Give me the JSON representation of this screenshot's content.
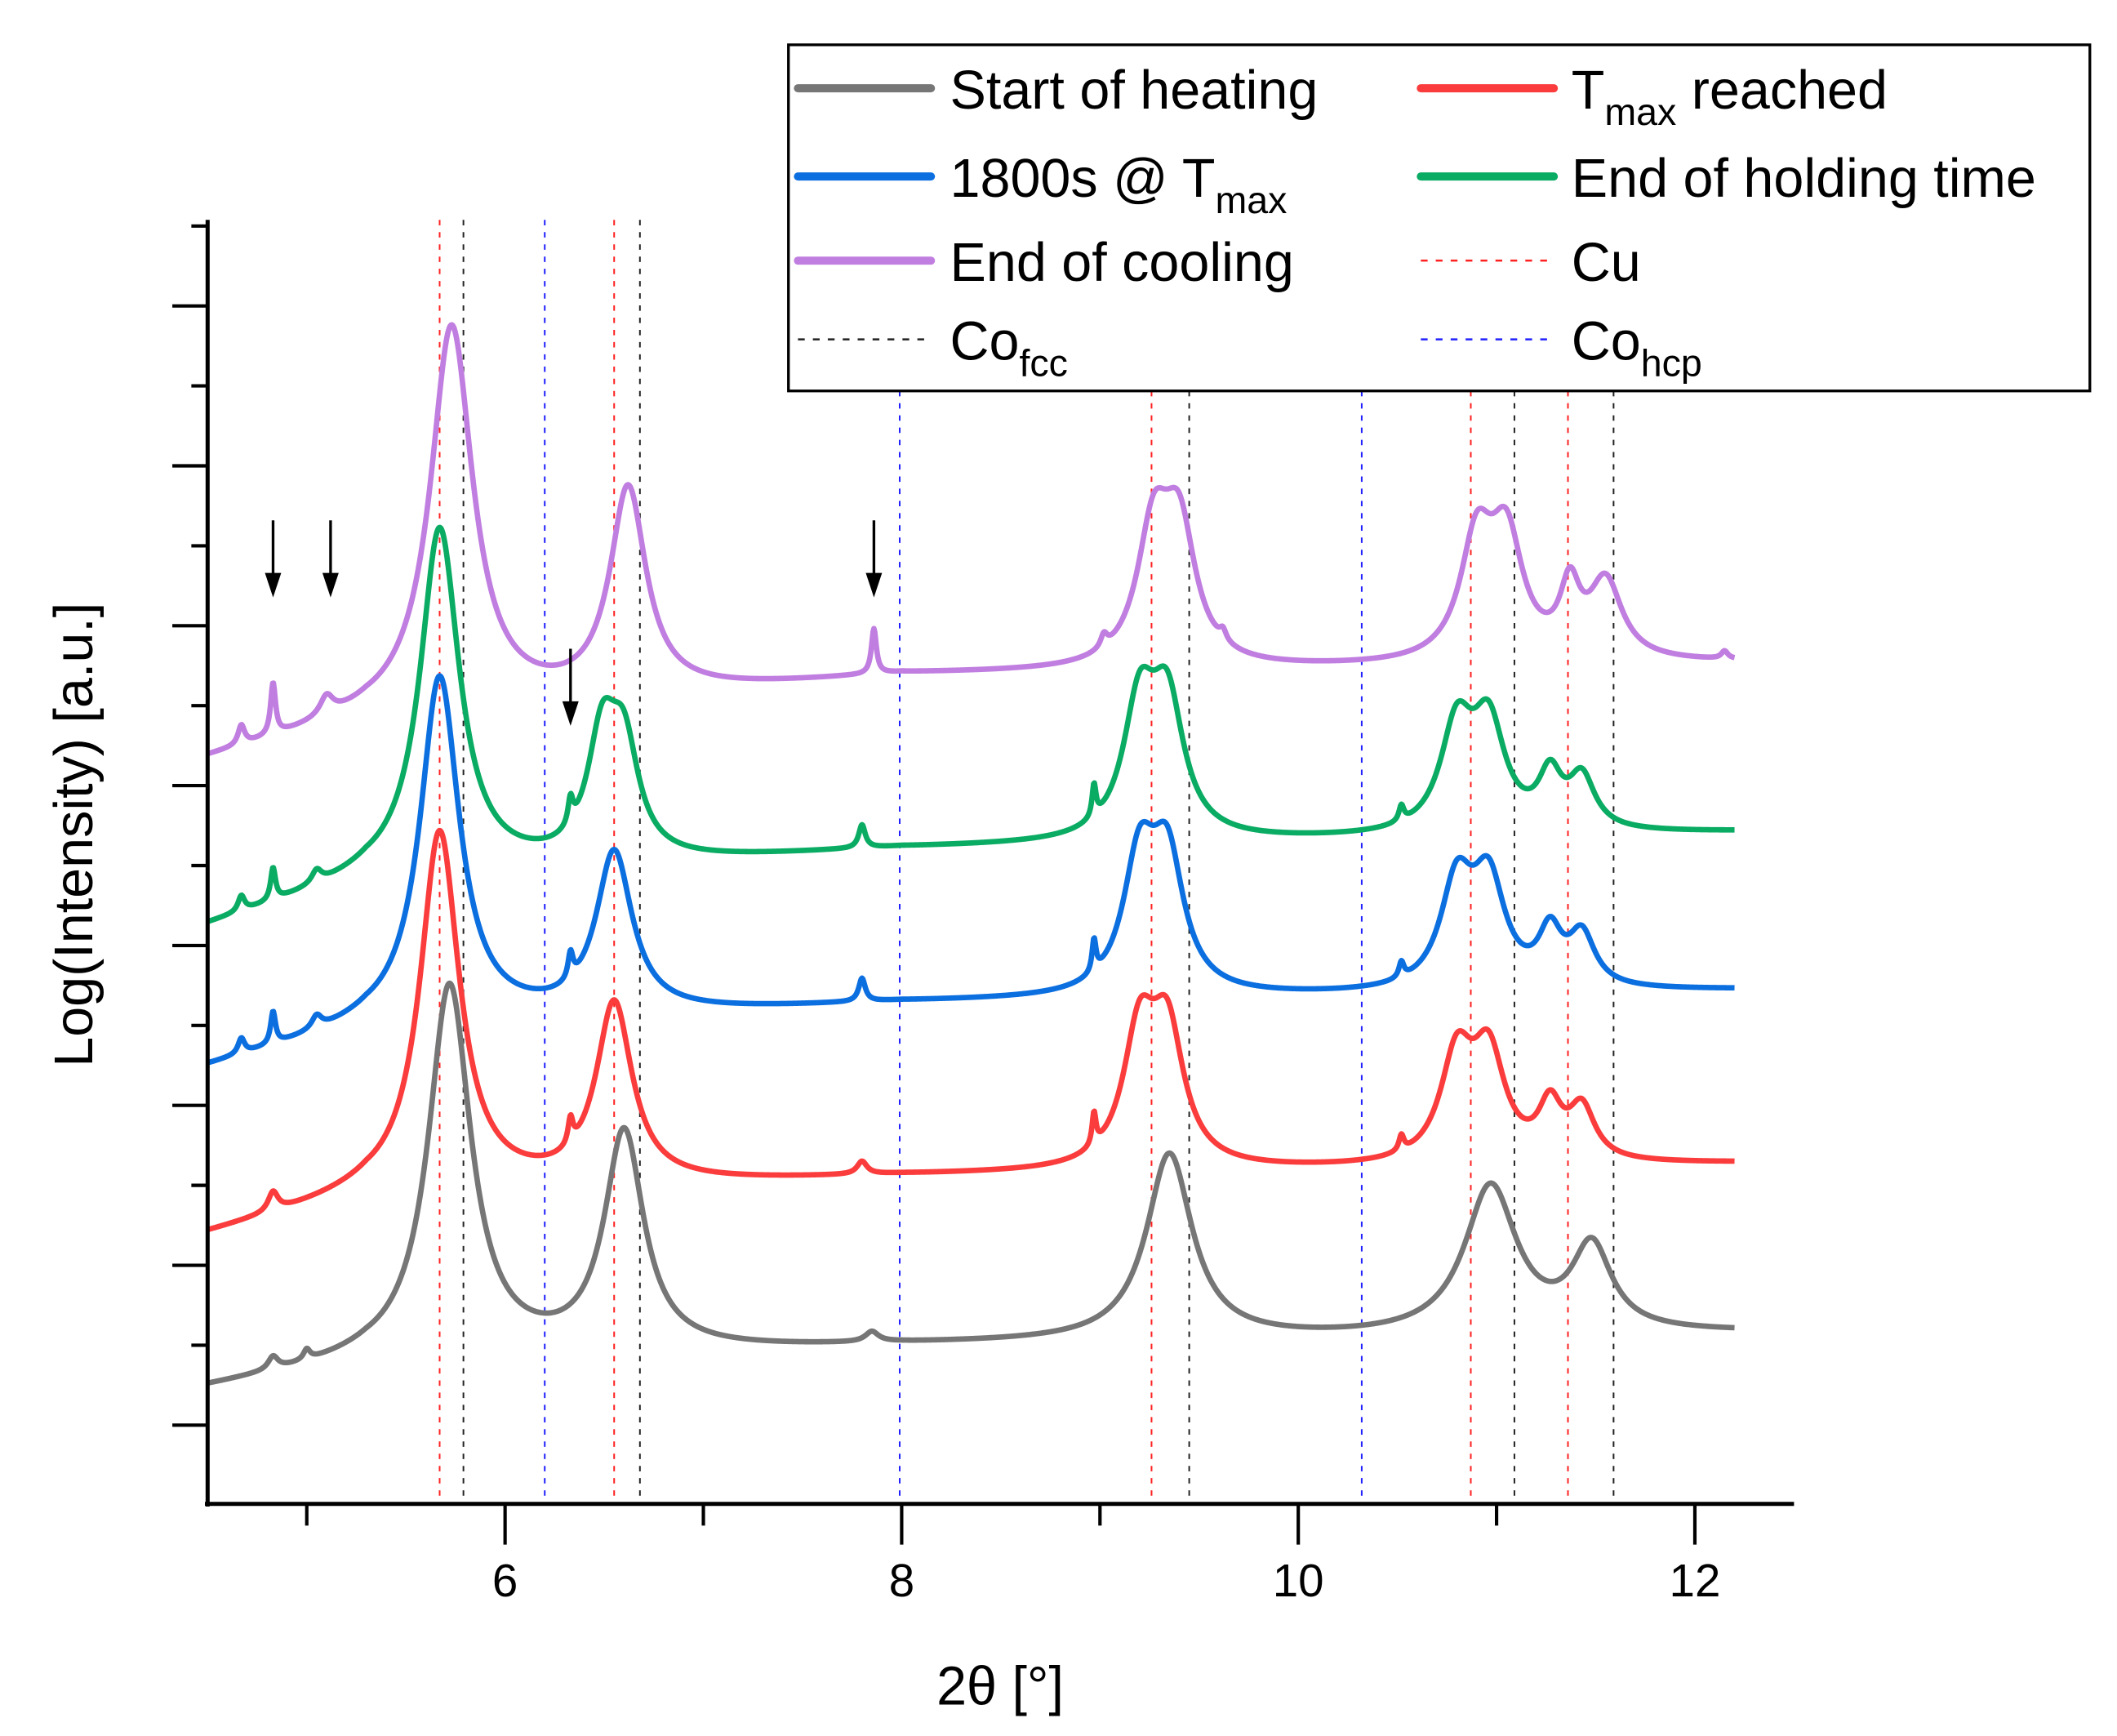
{
  "chart_data": {
    "type": "line",
    "title": "",
    "xlabel": "2θ [°]",
    "ylabel": "Log(Intensity) [a.u.]",
    "xlim": [
      4.5,
      12.5
    ],
    "ylim": [
      0,
      100
    ],
    "x_ticks": [
      "6",
      "8",
      "10",
      "12"
    ],
    "x_tick_values": [
      6,
      8,
      10,
      12
    ],
    "x_minor_ticks": [
      5,
      7,
      9,
      11
    ],
    "y_tick_labels_shown": false,
    "grid": false,
    "legend_placement": "top-right",
    "x_range_data": [
      4.5,
      12.2
    ],
    "series": [
      {
        "name": "Start of heating",
        "color": "#767676",
        "baseline": [
          [
            4.5,
            9
          ],
          [
            5.3,
            11
          ],
          [
            8,
            12.3
          ],
          [
            12.2,
            13.3
          ]
        ],
        "peaks": [
          [
            5.72,
            29,
            0.13
          ],
          [
            6.6,
            17,
            0.12
          ],
          [
            9.35,
            14.5,
            0.14
          ],
          [
            10.97,
            11.5,
            0.16
          ],
          [
            11.48,
            6.5,
            0.12
          ],
          [
            4.83,
            1,
            0.03
          ],
          [
            5.0,
            0.8,
            0.02
          ],
          [
            7.85,
            0.8,
            0.04
          ]
        ]
      },
      {
        "name": "Tmax reached",
        "color": "#fa3c3c",
        "baseline": [
          [
            4.5,
            21
          ],
          [
            5.3,
            24
          ],
          [
            8,
            25.5
          ],
          [
            12.2,
            26.5
          ]
        ],
        "peaks": [
          [
            5.67,
            28,
            0.12
          ],
          [
            6.55,
            14,
            0.11
          ],
          [
            9.2,
            10,
            0.1
          ],
          [
            9.34,
            10,
            0.1
          ],
          [
            10.8,
            8,
            0.1
          ],
          [
            10.96,
            8,
            0.1
          ],
          [
            11.27,
            4,
            0.07
          ],
          [
            11.43,
            4,
            0.08
          ],
          [
            4.83,
            1.5,
            0.03
          ],
          [
            6.33,
            2,
            0.015
          ],
          [
            7.8,
            1,
            0.03
          ],
          [
            8.97,
            2.5,
            0.012
          ],
          [
            10.52,
            1.2,
            0.015
          ]
        ]
      },
      {
        "name": "1800s @ Tmax",
        "color": "#0c6fe0",
        "baseline": [
          [
            4.5,
            34
          ],
          [
            5.3,
            37
          ],
          [
            8,
            39
          ],
          [
            12.2,
            40
          ]
        ],
        "peaks": [
          [
            5.67,
            27,
            0.12
          ],
          [
            6.55,
            12.5,
            0.11
          ],
          [
            9.2,
            10,
            0.1
          ],
          [
            9.34,
            10,
            0.1
          ],
          [
            10.8,
            8,
            0.1
          ],
          [
            10.96,
            8,
            0.1
          ],
          [
            11.27,
            4,
            0.07
          ],
          [
            11.43,
            4,
            0.08
          ],
          [
            4.67,
            1.2,
            0.02
          ],
          [
            4.83,
            2.5,
            0.015
          ],
          [
            5.05,
            1,
            0.03
          ],
          [
            6.33,
            2,
            0.015
          ],
          [
            7.8,
            1.8,
            0.02
          ],
          [
            8.97,
            2.5,
            0.012
          ],
          [
            10.52,
            1.2,
            0.015
          ]
        ]
      },
      {
        "name": "End of holding time",
        "color": "#0aab63",
        "baseline": [
          [
            4.5,
            45
          ],
          [
            5.3,
            48.5
          ],
          [
            8,
            51
          ],
          [
            12.2,
            52.3
          ]
        ],
        "peaks": [
          [
            5.67,
            27,
            0.12
          ],
          [
            6.49,
            9,
            0.09
          ],
          [
            6.6,
            8,
            0.09
          ],
          [
            9.2,
            10,
            0.1
          ],
          [
            9.34,
            10,
            0.1
          ],
          [
            10.8,
            8,
            0.1
          ],
          [
            10.96,
            8,
            0.1
          ],
          [
            11.27,
            4,
            0.07
          ],
          [
            11.43,
            4,
            0.08
          ],
          [
            4.67,
            1.2,
            0.02
          ],
          [
            4.83,
            2.5,
            0.015
          ],
          [
            5.05,
            1,
            0.03
          ],
          [
            6.33,
            2,
            0.015
          ],
          [
            7.8,
            1.8,
            0.02
          ],
          [
            8.97,
            2.5,
            0.012
          ],
          [
            10.52,
            1.2,
            0.015
          ]
        ]
      },
      {
        "name": "End of cooling",
        "color": "#c07ee0",
        "baseline": [
          [
            4.5,
            58
          ],
          [
            5.3,
            61
          ],
          [
            8,
            64.5
          ],
          [
            12.2,
            65.5
          ]
        ],
        "peaks": [
          [
            5.73,
            30,
            0.13
          ],
          [
            6.62,
            16,
            0.11
          ],
          [
            9.27,
            10,
            0.1
          ],
          [
            9.4,
            10,
            0.1
          ],
          [
            10.9,
            9,
            0.1
          ],
          [
            11.05,
            9,
            0.1
          ],
          [
            11.37,
            5,
            0.06
          ],
          [
            11.55,
            6,
            0.1
          ],
          [
            4.67,
            1.5,
            0.02
          ],
          [
            4.83,
            4,
            0.015
          ],
          [
            5.1,
            1.5,
            0.04
          ],
          [
            7.86,
            3.5,
            0.015
          ],
          [
            9.02,
            1,
            0.02
          ],
          [
            9.62,
            0.8,
            0.02
          ],
          [
            12.15,
            0.6,
            0.02
          ]
        ]
      }
    ],
    "reference_lines": [
      {
        "name": "Cu",
        "color": "#ff2020",
        "x": [
          5.67,
          6.55,
          9.26,
          10.87,
          11.36
        ]
      },
      {
        "name": "Cofcc",
        "color": "#222222",
        "x": [
          5.79,
          6.68,
          9.45,
          11.09,
          11.59
        ]
      },
      {
        "name": "Cohcp",
        "color": "#2020ff",
        "x": [
          6.2,
          7.99,
          10.32
        ]
      }
    ],
    "annotations": [
      {
        "type": "arrow",
        "x": 4.83,
        "y_from": 76.6,
        "y_to": 70.6
      },
      {
        "type": "arrow",
        "x": 5.12,
        "y_from": 76.6,
        "y_to": 70.6
      },
      {
        "type": "arrow",
        "x": 7.86,
        "y_from": 76.6,
        "y_to": 70.6
      },
      {
        "type": "arrow",
        "x": 6.33,
        "y_from": 66.6,
        "y_to": 60.6
      }
    ]
  },
  "legend": {
    "start_of_heating": "Start of heating",
    "tmax_main": "T",
    "tmax_sub": "max",
    "tmax_rest": " reached",
    "hold_main": "1800s @ T",
    "hold_sub": "max",
    "end_holding": "End of holding time",
    "end_cooling": "End of cooling",
    "cu": "Cu",
    "cofcc_main": "Co",
    "cofcc_sub": "fcc",
    "cohcp_main": "Co",
    "cohcp_sub": "hcp"
  }
}
